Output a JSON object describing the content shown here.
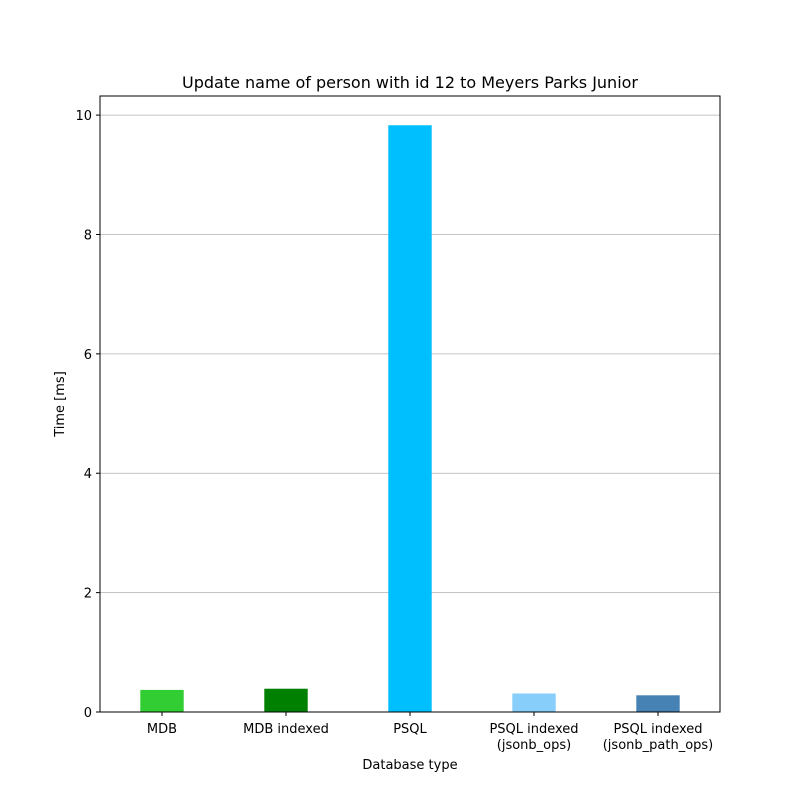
{
  "chart_data": {
    "type": "bar",
    "title": "Update name of person with id 12 to Meyers Parks Junior",
    "xlabel": "Database type",
    "ylabel": "Time [ms]",
    "categories": [
      "MDB",
      "MDB indexed",
      "PSQL",
      "PSQL indexed\n(jsonb_ops)",
      "PSQL indexed\n(jsonb_path_ops)"
    ],
    "values": [
      0.37,
      0.39,
      9.83,
      0.31,
      0.28
    ],
    "colors": [
      "#32cd32",
      "#008000",
      "#00bfff",
      "#87cefa",
      "#4682b4"
    ],
    "ylim": [
      0,
      10.32
    ],
    "yticks": [
      0,
      2,
      4,
      6,
      8,
      10
    ],
    "grid": "y-major",
    "legend": "none"
  }
}
